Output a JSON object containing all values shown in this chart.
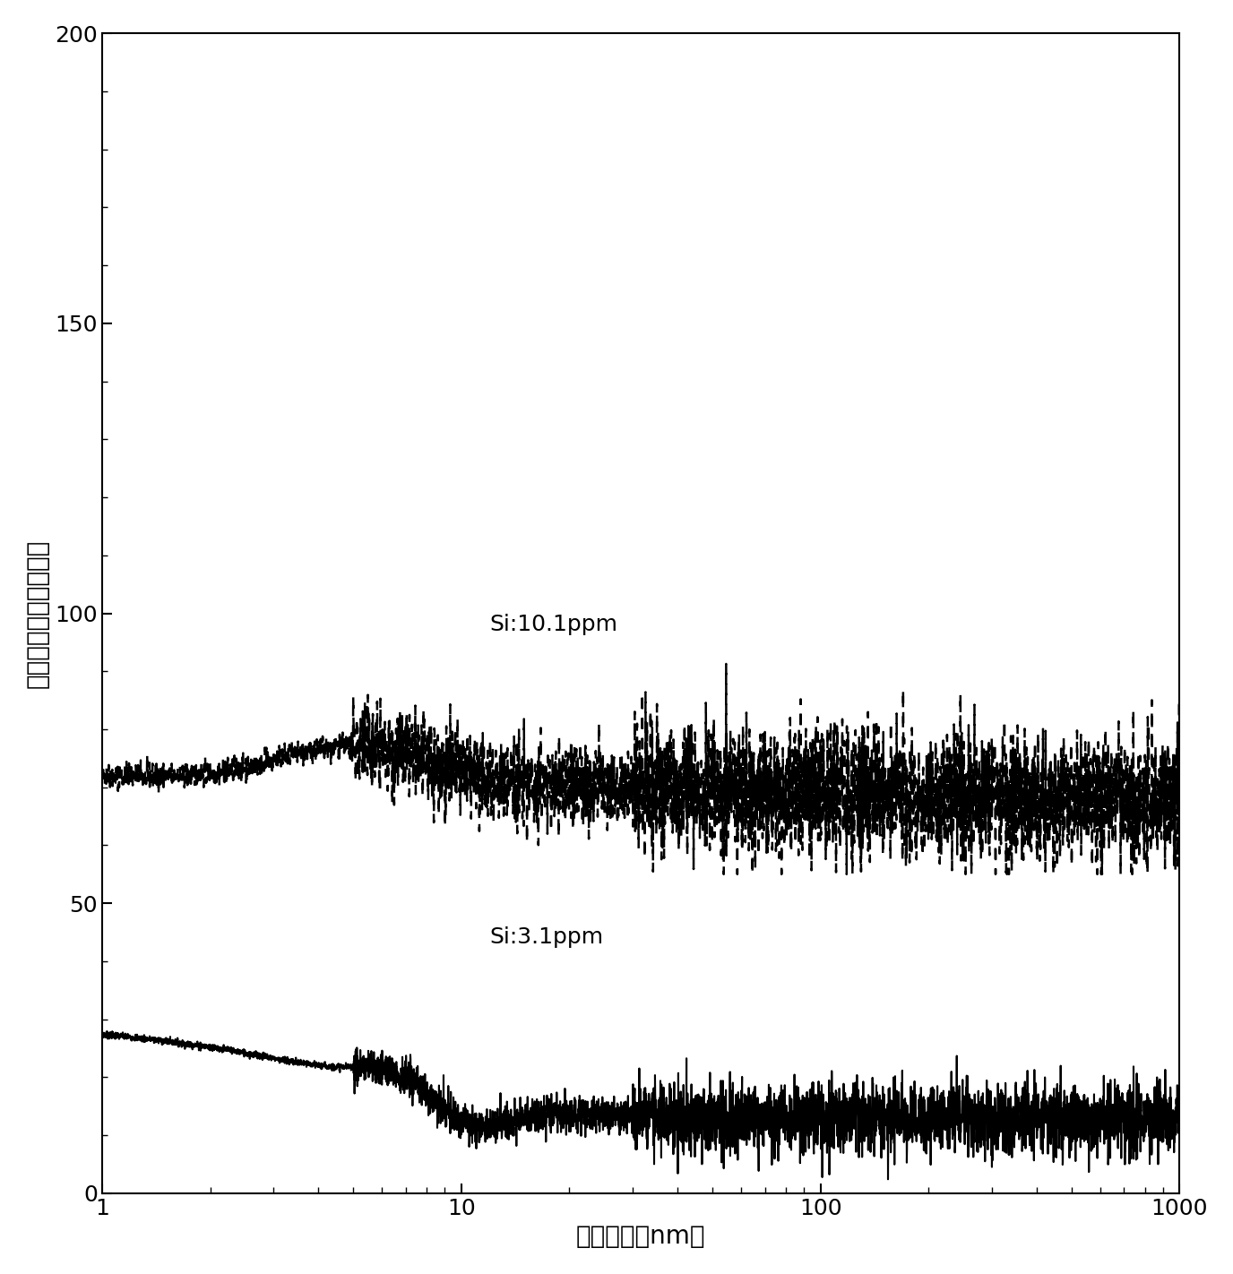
{
  "xlabel": "经过时间（nm）",
  "ylabel": "残光强度（任意单位）",
  "xlim": [
    1,
    1000
  ],
  "ylim": [
    0,
    200
  ],
  "yticks": [
    0,
    50,
    100,
    150,
    200
  ],
  "label_high": "Si:10.1ppm",
  "label_low": "Si:3.1ppm",
  "background_color": "#ffffff",
  "line_color": "#000000",
  "annotation_fontsize": 18,
  "axis_label_fontsize": 20,
  "tick_fontsize": 18,
  "seed_high": 42,
  "seed_low": 7
}
